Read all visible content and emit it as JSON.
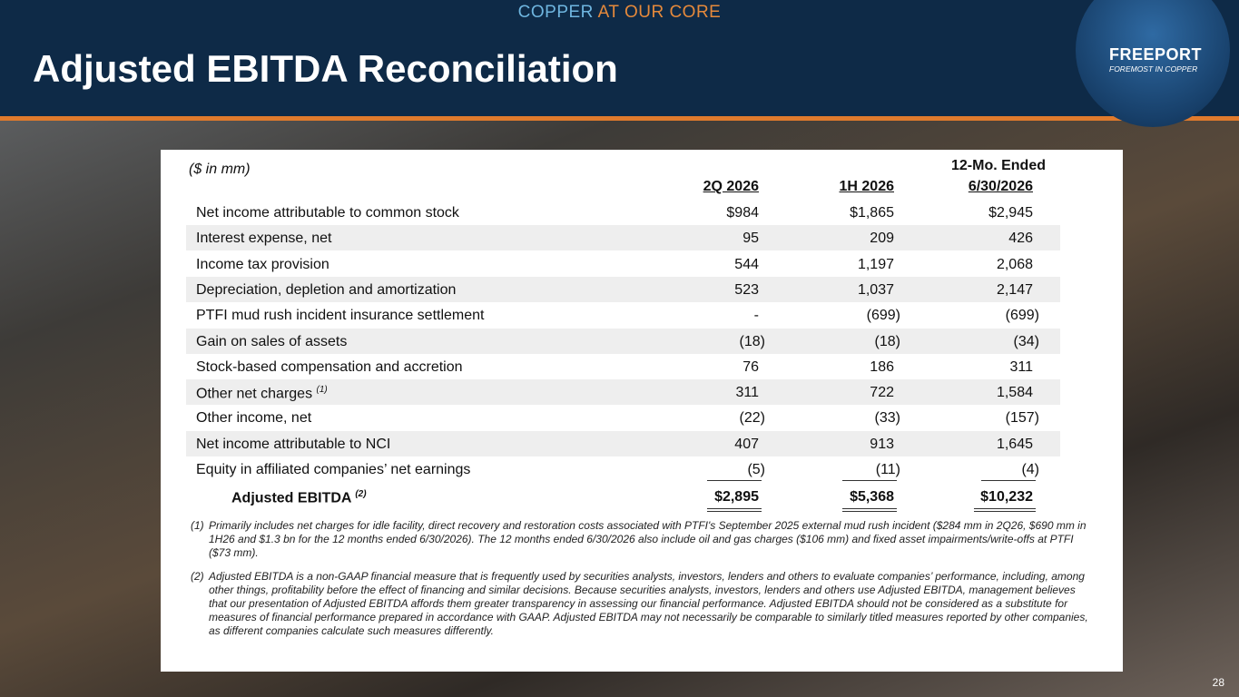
{
  "header": {
    "tagline": [
      "COPPER",
      "AT OUR CORE"
    ],
    "title": "Adjusted EBITDA Reconciliation",
    "logo": {
      "name": "FREEPORT",
      "motto": "FOREMOST IN COPPER"
    }
  },
  "table": {
    "unit": "($ in mm)",
    "columns": [
      "2Q 2026",
      "1H 2026",
      "6/30/2026"
    ],
    "column_group": "12-Mo. Ended",
    "rows": [
      {
        "label": "Net income attributable to common stock",
        "values": [
          "$984",
          "$1,865",
          "$2,945"
        ]
      },
      {
        "label": "Interest expense, net",
        "values": [
          "95",
          "209",
          "426"
        ]
      },
      {
        "label": "Income tax provision",
        "values": [
          "544",
          "1,197",
          "2,068"
        ]
      },
      {
        "label": "Depreciation, depletion and amortization",
        "values": [
          "523",
          "1,037",
          "2,147"
        ]
      },
      {
        "label": "PTFI mud rush incident insurance settlement",
        "values": [
          "-",
          "(699)",
          "(699)"
        ]
      },
      {
        "label": "Gain on sales of assets",
        "values": [
          "(18)",
          "(18)",
          "(34)"
        ]
      },
      {
        "label": "Stock-based compensation and accretion",
        "values": [
          "76",
          "186",
          "311"
        ]
      },
      {
        "label": "Other net charges",
        "note": "(1)",
        "values": [
          "311",
          "722",
          "1,584"
        ]
      },
      {
        "label": "Other income, net",
        "values": [
          "(22)",
          "(33)",
          "(157)"
        ]
      },
      {
        "label": "Net income attributable to NCI",
        "values": [
          "407",
          "913",
          "1,645"
        ]
      },
      {
        "label": "Equity in affiliated companies’ net earnings",
        "values": [
          "(5)",
          "(11)",
          "(4)"
        ]
      }
    ],
    "total": {
      "label": "Adjusted EBITDA",
      "note": "(2)",
      "values": [
        "$2,895",
        "$5,368",
        "$10,232"
      ]
    }
  },
  "footnotes": [
    {
      "marker": "(1)",
      "text": "Primarily includes net charges for idle facility, direct recovery and restoration costs associated with PTFI's September 2025 external mud rush incident ($284 mm in 2Q26, $690 mm in 1H26 and $1.3 bn for the 12 months ended 6/30/2026). The 12 months ended 6/30/2026 also include oil and gas charges ($106 mm) and fixed asset impairments/write-offs at PTFI ($73 mm)."
    },
    {
      "marker": "(2)",
      "text": "Adjusted EBITDA is a non-GAAP financial measure that is frequently used by securities analysts, investors, lenders and others to evaluate companies’ performance, including, among other things, profitability before the effect of financing and similar decisions. Because securities analysts, investors, lenders and others use Adjusted EBITDA, management believes that our presentation of Adjusted EBITDA affords them greater transparency in assessing our financial performance. Adjusted EBITDA should not be considered as a substitute for measures of financial performance prepared in accordance with GAAP. Adjusted EBITDA may not necessarily be comparable to similarly titled measures reported by other companies, as different companies calculate such measures differently."
    }
  ],
  "page_number": "28"
}
